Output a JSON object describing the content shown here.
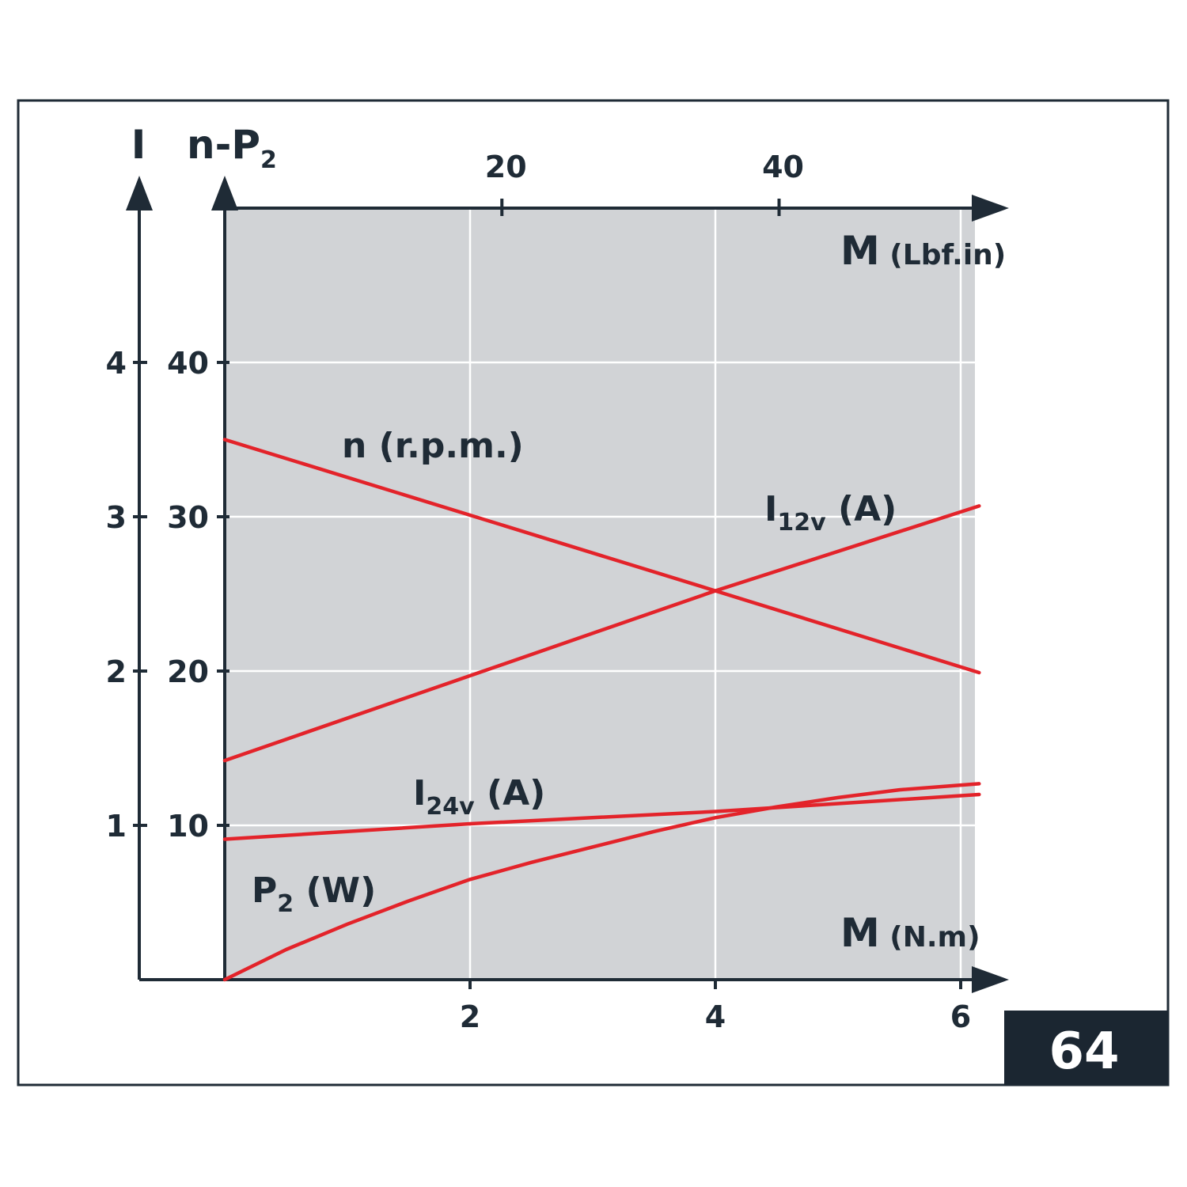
{
  "figure_number": "64",
  "chart_data": {
    "type": "line",
    "axes": {
      "x_bottom": {
        "name": "M",
        "unit": "(N.m)",
        "range": [
          0,
          6.15
        ],
        "ticks": [
          2,
          4,
          6
        ],
        "tick_labels": [
          "2",
          "4",
          "6"
        ]
      },
      "x_top": {
        "name": "M",
        "unit": "(Lbf.in)",
        "ticks": [
          20,
          40
        ],
        "tick_labels": [
          "20",
          "40"
        ]
      },
      "y_left_outer": {
        "name": "I",
        "range": [
          0,
          5
        ],
        "ticks": [
          1,
          2,
          3,
          4
        ],
        "tick_labels": [
          "1",
          "2",
          "3",
          "4"
        ]
      },
      "y_left_inner": {
        "name_main": "n-P",
        "name_sub": "2",
        "range": [
          0,
          50
        ],
        "ticks": [
          10,
          20,
          30,
          40
        ],
        "tick_labels": [
          "10",
          "20",
          "30",
          "40"
        ]
      }
    },
    "grid": true,
    "background_color": "#d1d3d6",
    "line_color": "#e3232a",
    "series": [
      {
        "name": "n (r.p.m.)",
        "label_main": "n (r.p.m.)",
        "axis": "y_left_inner",
        "x": [
          0,
          2,
          4,
          6.15
        ],
        "y": [
          35,
          30.1,
          25.2,
          19.9
        ]
      },
      {
        "name": "I12v (A)",
        "label_main": "I",
        "label_sub": "12v",
        "label_tail": " (A)",
        "axis": "y_left_outer",
        "x": [
          0,
          2,
          4,
          6.15
        ],
        "y": [
          1.42,
          1.97,
          2.52,
          3.07
        ]
      },
      {
        "name": "I24v (A)",
        "label_main": "I",
        "label_sub": "24v",
        "label_tail": " (A)",
        "axis": "y_left_outer",
        "x": [
          0,
          2,
          4,
          6.15
        ],
        "y": [
          0.91,
          1.01,
          1.09,
          1.2
        ]
      },
      {
        "name": "P2 (W)",
        "label_main": "P",
        "label_sub": "2",
        "label_tail": " (W)",
        "axis": "y_left_inner",
        "x": [
          0,
          0.5,
          1,
          1.5,
          2,
          2.5,
          3,
          3.5,
          4,
          4.5,
          5,
          5.5,
          6.15
        ],
        "y": [
          0,
          1.95,
          3.6,
          5.1,
          6.5,
          7.6,
          8.6,
          9.6,
          10.5,
          11.2,
          11.8,
          12.3,
          12.7
        ]
      }
    ]
  }
}
